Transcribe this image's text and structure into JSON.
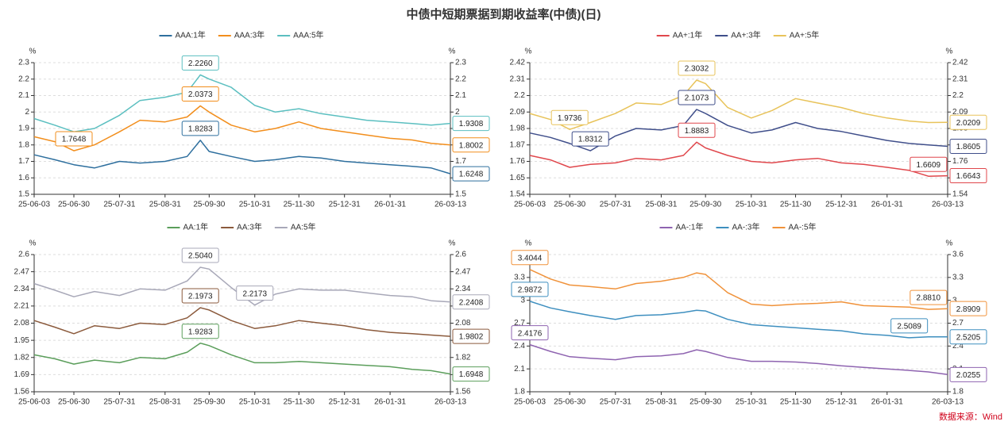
{
  "title": "中债中短期票据到期收益率(中债)(日)",
  "source": "数据来源：Wind",
  "chart_data": [
    {
      "type": "line",
      "y_unit": "%",
      "y2_unit": "%",
      "grid": true,
      "x": [
        "25-06-03",
        "25-06-17",
        "25-06-30",
        "25-07-14",
        "25-07-31",
        "25-08-14",
        "25-08-31",
        "25-09-15",
        "25-09-24",
        "25-09-30",
        "25-10-15",
        "25-10-31",
        "25-11-14",
        "25-11-30",
        "25-12-15",
        "25-12-31",
        "26-01-15",
        "26-01-31",
        "26-02-15",
        "26-02-28",
        "26-03-13"
      ],
      "xlim": [
        "25-06-03",
        "26-03-13"
      ],
      "xticks": [
        "25-06-03",
        "25-06-30",
        "25-07-31",
        "25-08-31",
        "25-09-30",
        "25-10-31",
        "25-11-30",
        "25-12-31",
        "26-01-31",
        "26-03-13"
      ],
      "ylim": [
        1.5,
        2.3
      ],
      "yticks": [
        1.5,
        1.6,
        1.7,
        1.8,
        1.9,
        2,
        2.1,
        2.2,
        2.3
      ],
      "series": [
        {
          "name": "AAA:1年",
          "color": "#2e6f9e",
          "values": [
            1.74,
            1.71,
            1.68,
            1.66,
            1.7,
            1.69,
            1.7,
            1.73,
            1.8283,
            1.76,
            1.73,
            1.7,
            1.71,
            1.73,
            1.72,
            1.7,
            1.69,
            1.68,
            1.67,
            1.66,
            1.6248
          ]
        },
        {
          "name": "AAA:3年",
          "color": "#f28e1c",
          "values": [
            1.85,
            1.82,
            1.7648,
            1.8,
            1.88,
            1.95,
            1.94,
            1.97,
            2.0373,
            2.0,
            1.92,
            1.88,
            1.9,
            1.94,
            1.9,
            1.88,
            1.86,
            1.84,
            1.83,
            1.81,
            1.8002
          ]
        },
        {
          "name": "AAA:5年",
          "color": "#5bbfc0",
          "values": [
            1.96,
            1.92,
            1.88,
            1.9,
            1.98,
            2.07,
            2.09,
            2.12,
            2.226,
            2.2,
            2.15,
            2.04,
            2.0,
            2.02,
            1.99,
            1.97,
            1.95,
            1.94,
            1.93,
            1.92,
            1.9308
          ]
        }
      ],
      "annotations": [
        {
          "label": "2.2260",
          "x": "25-09-24",
          "value": 2.226,
          "color": "#5bbfc0",
          "position": "above"
        },
        {
          "label": "2.0373",
          "x": "25-09-24",
          "value": 2.0373,
          "color": "#f28e1c",
          "position": "above"
        },
        {
          "label": "1.8283",
          "x": "25-09-24",
          "value": 1.8283,
          "color": "#2e6f9e",
          "position": "above"
        },
        {
          "label": "1.7648",
          "x": "25-06-30",
          "value": 1.7648,
          "color": "#f28e1c",
          "position": "above"
        },
        {
          "label": "1.9308",
          "x": "26-03-13",
          "value": 1.9308,
          "color": "#5bbfc0",
          "position": "right"
        },
        {
          "label": "1.8002",
          "x": "26-03-13",
          "value": 1.8002,
          "color": "#f28e1c",
          "position": "right"
        },
        {
          "label": "1.6248",
          "x": "26-03-13",
          "value": 1.6248,
          "color": "#2e6f9e",
          "position": "right"
        }
      ]
    },
    {
      "type": "line",
      "y_unit": "%",
      "y2_unit": "%",
      "grid": true,
      "x": [
        "25-06-03",
        "25-06-17",
        "25-06-30",
        "25-07-14",
        "25-07-31",
        "25-08-14",
        "25-08-31",
        "25-09-15",
        "25-09-24",
        "25-09-30",
        "25-10-15",
        "25-10-31",
        "25-11-14",
        "25-11-30",
        "25-12-15",
        "25-12-31",
        "26-01-15",
        "26-01-31",
        "26-02-15",
        "26-02-28",
        "26-03-13"
      ],
      "xlim": [
        "25-06-03",
        "26-03-13"
      ],
      "xticks": [
        "25-06-03",
        "25-06-30",
        "25-07-31",
        "25-08-31",
        "25-09-30",
        "25-10-31",
        "25-11-30",
        "25-12-31",
        "26-01-31",
        "26-03-13"
      ],
      "ylim": [
        1.54,
        2.42
      ],
      "yticks": [
        1.54,
        1.65,
        1.76,
        1.87,
        1.98,
        2.09,
        2.2,
        2.31,
        2.42
      ],
      "series": [
        {
          "name": "AA+:1年",
          "color": "#e0474c",
          "values": [
            1.8,
            1.77,
            1.72,
            1.74,
            1.75,
            1.78,
            1.77,
            1.8,
            1.8883,
            1.85,
            1.8,
            1.76,
            1.75,
            1.77,
            1.78,
            1.75,
            1.74,
            1.72,
            1.7,
            1.6609,
            1.6643
          ]
        },
        {
          "name": "AA+:3年",
          "color": "#3f4e8a",
          "values": [
            1.95,
            1.92,
            1.88,
            1.8312,
            1.93,
            1.98,
            1.97,
            2.0,
            2.1073,
            2.08,
            2.0,
            1.95,
            1.97,
            2.02,
            1.98,
            1.96,
            1.93,
            1.9,
            1.88,
            1.87,
            1.8605
          ]
        },
        {
          "name": "AA+:5年",
          "color": "#e8c35a",
          "values": [
            2.08,
            2.04,
            1.9736,
            2.02,
            2.08,
            2.15,
            2.14,
            2.2,
            2.3032,
            2.28,
            2.12,
            2.05,
            2.1,
            2.18,
            2.15,
            2.12,
            2.08,
            2.05,
            2.03,
            2.02,
            2.0209
          ]
        }
      ],
      "annotations": [
        {
          "label": "2.3032",
          "x": "25-09-24",
          "value": 2.3032,
          "color": "#e8c35a",
          "position": "above"
        },
        {
          "label": "2.1073",
          "x": "25-09-24",
          "value": 2.1073,
          "color": "#3f4e8a",
          "position": "above"
        },
        {
          "label": "1.8883",
          "x": "25-09-24",
          "value": 1.8883,
          "color": "#e0474c",
          "position": "above"
        },
        {
          "label": "1.9736",
          "x": "25-06-30",
          "value": 1.9736,
          "color": "#e8c35a",
          "position": "above"
        },
        {
          "label": "1.8312",
          "x": "25-07-14",
          "value": 1.8312,
          "color": "#3f4e8a",
          "position": "above"
        },
        {
          "label": "1.6609",
          "x": "26-02-28",
          "value": 1.6609,
          "color": "#e0474c",
          "position": "above"
        },
        {
          "label": "2.0209",
          "x": "26-03-13",
          "value": 2.0209,
          "color": "#e8c35a",
          "position": "right"
        },
        {
          "label": "1.8605",
          "x": "26-03-13",
          "value": 1.8605,
          "color": "#3f4e8a",
          "position": "right"
        },
        {
          "label": "1.6643",
          "x": "26-03-13",
          "value": 1.6643,
          "color": "#e0474c",
          "position": "right"
        }
      ]
    },
    {
      "type": "line",
      "y_unit": "%",
      "y2_unit": "%",
      "grid": true,
      "x": [
        "25-06-03",
        "25-06-17",
        "25-06-30",
        "25-07-14",
        "25-07-31",
        "25-08-14",
        "25-08-31",
        "25-09-15",
        "25-09-24",
        "25-09-30",
        "25-10-15",
        "25-10-31",
        "25-11-14",
        "25-11-30",
        "25-12-15",
        "25-12-31",
        "26-01-15",
        "26-01-31",
        "26-02-15",
        "26-02-28",
        "26-03-13"
      ],
      "xlim": [
        "25-06-03",
        "26-03-13"
      ],
      "xticks": [
        "25-06-03",
        "25-06-30",
        "25-07-31",
        "25-08-31",
        "25-09-30",
        "25-10-31",
        "25-11-30",
        "25-12-31",
        "26-01-31",
        "26-03-13"
      ],
      "ylim": [
        1.56,
        2.6
      ],
      "yticks": [
        1.56,
        1.69,
        1.82,
        1.95,
        2.08,
        2.21,
        2.34,
        2.47,
        2.6
      ],
      "series": [
        {
          "name": "AA:1年",
          "color": "#5b9e5b",
          "values": [
            1.84,
            1.81,
            1.77,
            1.8,
            1.78,
            1.82,
            1.81,
            1.86,
            1.9283,
            1.91,
            1.84,
            1.78,
            1.78,
            1.79,
            1.78,
            1.77,
            1.76,
            1.75,
            1.73,
            1.72,
            1.6948
          ]
        },
        {
          "name": "AA:3年",
          "color": "#8b5a3c",
          "values": [
            2.1,
            2.05,
            2.0,
            2.06,
            2.04,
            2.08,
            2.07,
            2.12,
            2.1973,
            2.18,
            2.1,
            2.04,
            2.06,
            2.1,
            2.08,
            2.06,
            2.03,
            2.01,
            2.0,
            1.99,
            1.9802
          ]
        },
        {
          "name": "AA:5年",
          "color": "#a8a8b8",
          "values": [
            2.38,
            2.33,
            2.28,
            2.32,
            2.29,
            2.34,
            2.33,
            2.4,
            2.504,
            2.49,
            2.35,
            2.2173,
            2.3,
            2.34,
            2.33,
            2.33,
            2.31,
            2.29,
            2.28,
            2.25,
            2.2408
          ]
        }
      ],
      "annotations": [
        {
          "label": "2.5040",
          "x": "25-09-24",
          "value": 2.504,
          "color": "#a8a8b8",
          "position": "above"
        },
        {
          "label": "2.1973",
          "x": "25-09-24",
          "value": 2.1973,
          "color": "#8b5a3c",
          "position": "above"
        },
        {
          "label": "1.9283",
          "x": "25-09-24",
          "value": 1.9283,
          "color": "#5b9e5b",
          "position": "above"
        },
        {
          "label": "2.2173",
          "x": "25-10-31",
          "value": 2.2173,
          "color": "#a8a8b8",
          "position": "above"
        },
        {
          "label": "2.2408",
          "x": "26-03-13",
          "value": 2.2408,
          "color": "#a8a8b8",
          "position": "right"
        },
        {
          "label": "1.9802",
          "x": "26-03-13",
          "value": 1.9802,
          "color": "#8b5a3c",
          "position": "right"
        },
        {
          "label": "1.6948",
          "x": "26-03-13",
          "value": 1.6948,
          "color": "#5b9e5b",
          "position": "right"
        }
      ]
    },
    {
      "type": "line",
      "y_unit": "%",
      "y2_unit": "%",
      "grid": true,
      "x": [
        "25-06-03",
        "25-06-17",
        "25-06-30",
        "25-07-14",
        "25-07-31",
        "25-08-14",
        "25-08-31",
        "25-09-15",
        "25-09-24",
        "25-09-30",
        "25-10-15",
        "25-10-31",
        "25-11-14",
        "25-11-30",
        "25-12-15",
        "25-12-31",
        "26-01-15",
        "26-01-31",
        "26-02-15",
        "26-02-28",
        "26-03-13"
      ],
      "xlim": [
        "25-06-03",
        "26-03-13"
      ],
      "xticks": [
        "25-06-03",
        "25-06-30",
        "25-07-31",
        "25-08-31",
        "25-09-30",
        "25-10-31",
        "25-11-30",
        "25-12-31",
        "26-01-31",
        "26-03-13"
      ],
      "ylim": [
        1.8,
        3.6
      ],
      "yticks": [
        1.8,
        2.1,
        2.4,
        2.7,
        3,
        3.3,
        3.6
      ],
      "series": [
        {
          "name": "AA-:1年",
          "color": "#8e63b0",
          "values": [
            2.4176,
            2.33,
            2.26,
            2.24,
            2.22,
            2.26,
            2.27,
            2.3,
            2.35,
            2.33,
            2.25,
            2.2,
            2.2,
            2.19,
            2.17,
            2.14,
            2.12,
            2.1,
            2.08,
            2.06,
            2.0255
          ]
        },
        {
          "name": "AA-:3年",
          "color": "#3e8fbf",
          "values": [
            2.9872,
            2.9,
            2.85,
            2.8,
            2.75,
            2.8,
            2.81,
            2.84,
            2.87,
            2.86,
            2.75,
            2.68,
            2.66,
            2.64,
            2.62,
            2.6,
            2.56,
            2.54,
            2.5089,
            2.52,
            2.5205
          ]
        },
        {
          "name": "AA-:5年",
          "color": "#f0923a",
          "values": [
            3.4044,
            3.28,
            3.2,
            3.18,
            3.15,
            3.22,
            3.25,
            3.3,
            3.36,
            3.34,
            3.1,
            2.95,
            2.93,
            2.95,
            2.96,
            2.98,
            2.93,
            2.92,
            2.91,
            2.881,
            2.8909
          ]
        }
      ],
      "annotations": [
        {
          "label": "3.4044",
          "x": "25-06-03",
          "value": 3.4044,
          "color": "#f0923a",
          "position": "above"
        },
        {
          "label": "2.9872",
          "x": "25-06-03",
          "value": 2.9872,
          "color": "#3e8fbf",
          "position": "above"
        },
        {
          "label": "2.4176",
          "x": "25-06-03",
          "value": 2.4176,
          "color": "#8e63b0",
          "position": "above"
        },
        {
          "label": "2.5089",
          "x": "26-02-15",
          "value": 2.5089,
          "color": "#3e8fbf",
          "position": "above"
        },
        {
          "label": "2.8810",
          "x": "26-02-28",
          "value": 2.881,
          "color": "#f0923a",
          "position": "above"
        },
        {
          "label": "2.8909",
          "x": "26-03-13",
          "value": 2.8909,
          "color": "#f0923a",
          "position": "right"
        },
        {
          "label": "2.5205",
          "x": "26-03-13",
          "value": 2.5205,
          "color": "#3e8fbf",
          "position": "right"
        },
        {
          "label": "2.0255",
          "x": "26-03-13",
          "value": 2.0255,
          "color": "#8e63b0",
          "position": "right"
        }
      ]
    }
  ]
}
